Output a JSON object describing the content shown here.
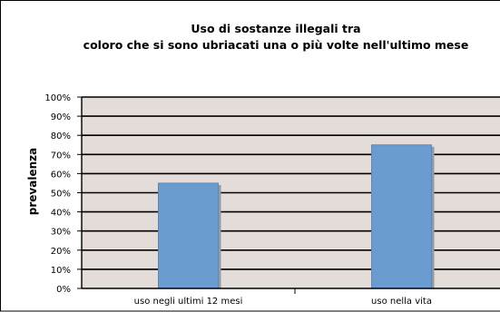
{
  "chart_data": {
    "type": "bar",
    "title_line1": "Uso di sostanze illegali tra",
    "title_line2": "coloro che si sono ubriacati una o più volte nell'ultimo mese",
    "ylabel": "prevalenza",
    "categories": [
      "uso negli ultimi 12 mesi",
      "uso nella vita"
    ],
    "values": [
      55,
      75
    ],
    "ylim": [
      0,
      100
    ],
    "yticks": [
      "0%",
      "10%",
      "20%",
      "30%",
      "40%",
      "50%",
      "60%",
      "70%",
      "80%",
      "90%",
      "100%"
    ],
    "grid": true,
    "legend": "none",
    "colors": {
      "bar": "#6a9bd1",
      "bar_edge": "#5a87be",
      "bar_shadow": "#9a9a9a",
      "plot_bg": "#e4dcd8",
      "gridline": "#000000"
    }
  }
}
